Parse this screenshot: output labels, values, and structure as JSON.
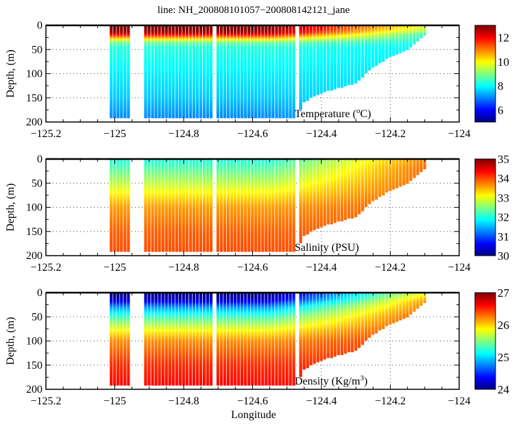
{
  "title": "line: NH_200808101057−200808142121_jane",
  "xlabel": "Longitude",
  "colors": {
    "frame": "#000000",
    "grid": "#444444",
    "background": "#ffffff"
  },
  "chart_data": [
    {
      "type": "scatter",
      "colormap": "jet",
      "variable_label": "Temperature (",
      "variable_label_sup": "o",
      "variable_label_end": "C)",
      "ylabel": "Depth, (m)",
      "xlim": [
        -125.2,
        -124.0
      ],
      "ylim": [
        200,
        0
      ],
      "xticks": [
        "-125.2",
        "-125",
        "-124.8",
        "-124.6",
        "-124.4",
        "-124.2",
        "-124"
      ],
      "yticks": [
        "0",
        "50",
        "100",
        "150",
        "200"
      ],
      "clim": [
        5,
        13
      ],
      "cticks": [
        "6",
        "8",
        "10",
        "12"
      ],
      "cticks_values": [
        6,
        8,
        10,
        12
      ],
      "grid": true,
      "offshore_profile": {
        "depth": [
          0,
          15,
          25,
          35,
          45,
          100,
          150,
          190
        ],
        "value": [
          13,
          12.8,
          11,
          9,
          8.3,
          7.9,
          7.6,
          7.1
        ]
      },
      "nearshore_profile": {
        "depth": [
          0,
          10,
          20,
          50,
          100
        ],
        "value": [
          10,
          9.5,
          8.5,
          7.9,
          7.8
        ]
      }
    },
    {
      "type": "scatter",
      "colormap": "jet",
      "variable_label": "Salinity (PSU)",
      "ylabel": "Depth, (m)",
      "xlim": [
        -125.2,
        -124.0
      ],
      "ylim": [
        200,
        0
      ],
      "xticks": [
        "-125.2",
        "-125",
        "-124.8",
        "-124.6",
        "-124.4",
        "-124.2",
        "-124"
      ],
      "yticks": [
        "0",
        "50",
        "100",
        "150",
        "200"
      ],
      "clim": [
        30,
        35
      ],
      "cticks": [
        "30",
        "31",
        "32",
        "33",
        "34",
        "35"
      ],
      "cticks_values": [
        30,
        31,
        32,
        33,
        34,
        35
      ],
      "grid": true,
      "offshore_profile": {
        "depth": [
          0,
          20,
          50,
          80,
          100,
          150,
          190
        ],
        "value": [
          32.0,
          32.3,
          32.8,
          33.3,
          33.6,
          33.9,
          34.0
        ]
      },
      "nearshore_profile": {
        "depth": [
          0,
          20,
          50,
          100
        ],
        "value": [
          33.7,
          33.85,
          33.9,
          33.95
        ]
      }
    },
    {
      "type": "scatter",
      "colormap": "jet",
      "variable_label": "Density (Kg/m",
      "variable_label_sup": "3",
      "variable_label_end": ")",
      "ylabel": "Depth, (m)",
      "xlim": [
        -125.2,
        -124.0
      ],
      "ylim": [
        200,
        0
      ],
      "xticks": [
        "-125.2",
        "-125",
        "-124.8",
        "-124.6",
        "-124.4",
        "-124.2",
        "-124"
      ],
      "yticks": [
        "0",
        "50",
        "100",
        "150",
        "200"
      ],
      "clim": [
        24,
        27
      ],
      "cticks": [
        "24",
        "25",
        "26",
        "27"
      ],
      "cticks_values": [
        24,
        25,
        26,
        27
      ],
      "grid": true,
      "offshore_profile": {
        "depth": [
          0,
          15,
          30,
          50,
          80,
          100,
          150,
          190
        ],
        "value": [
          24.0,
          24.2,
          24.8,
          25.3,
          25.9,
          26.2,
          26.5,
          26.6
        ]
      },
      "nearshore_profile": {
        "depth": [
          0,
          20,
          50,
          100
        ],
        "value": [
          25.8,
          26.2,
          26.4,
          26.5
        ]
      }
    }
  ],
  "casts": {
    "longitude_range": [
      -125.01,
      -124.1
    ],
    "spacing": 0.01,
    "gaps": [
      [
        -124.955,
        -124.915
      ],
      [
        -124.715,
        -124.705
      ],
      [
        -124.475,
        -124.465
      ]
    ],
    "bottom_profile": {
      "longitude": [
        -125.01,
        -124.47,
        -124.45,
        -124.4,
        -124.3,
        -124.26,
        -124.2,
        -124.15,
        -124.1
      ],
      "depth": [
        190,
        190,
        158,
        140,
        120,
        92,
        65,
        50,
        20
      ]
    }
  }
}
